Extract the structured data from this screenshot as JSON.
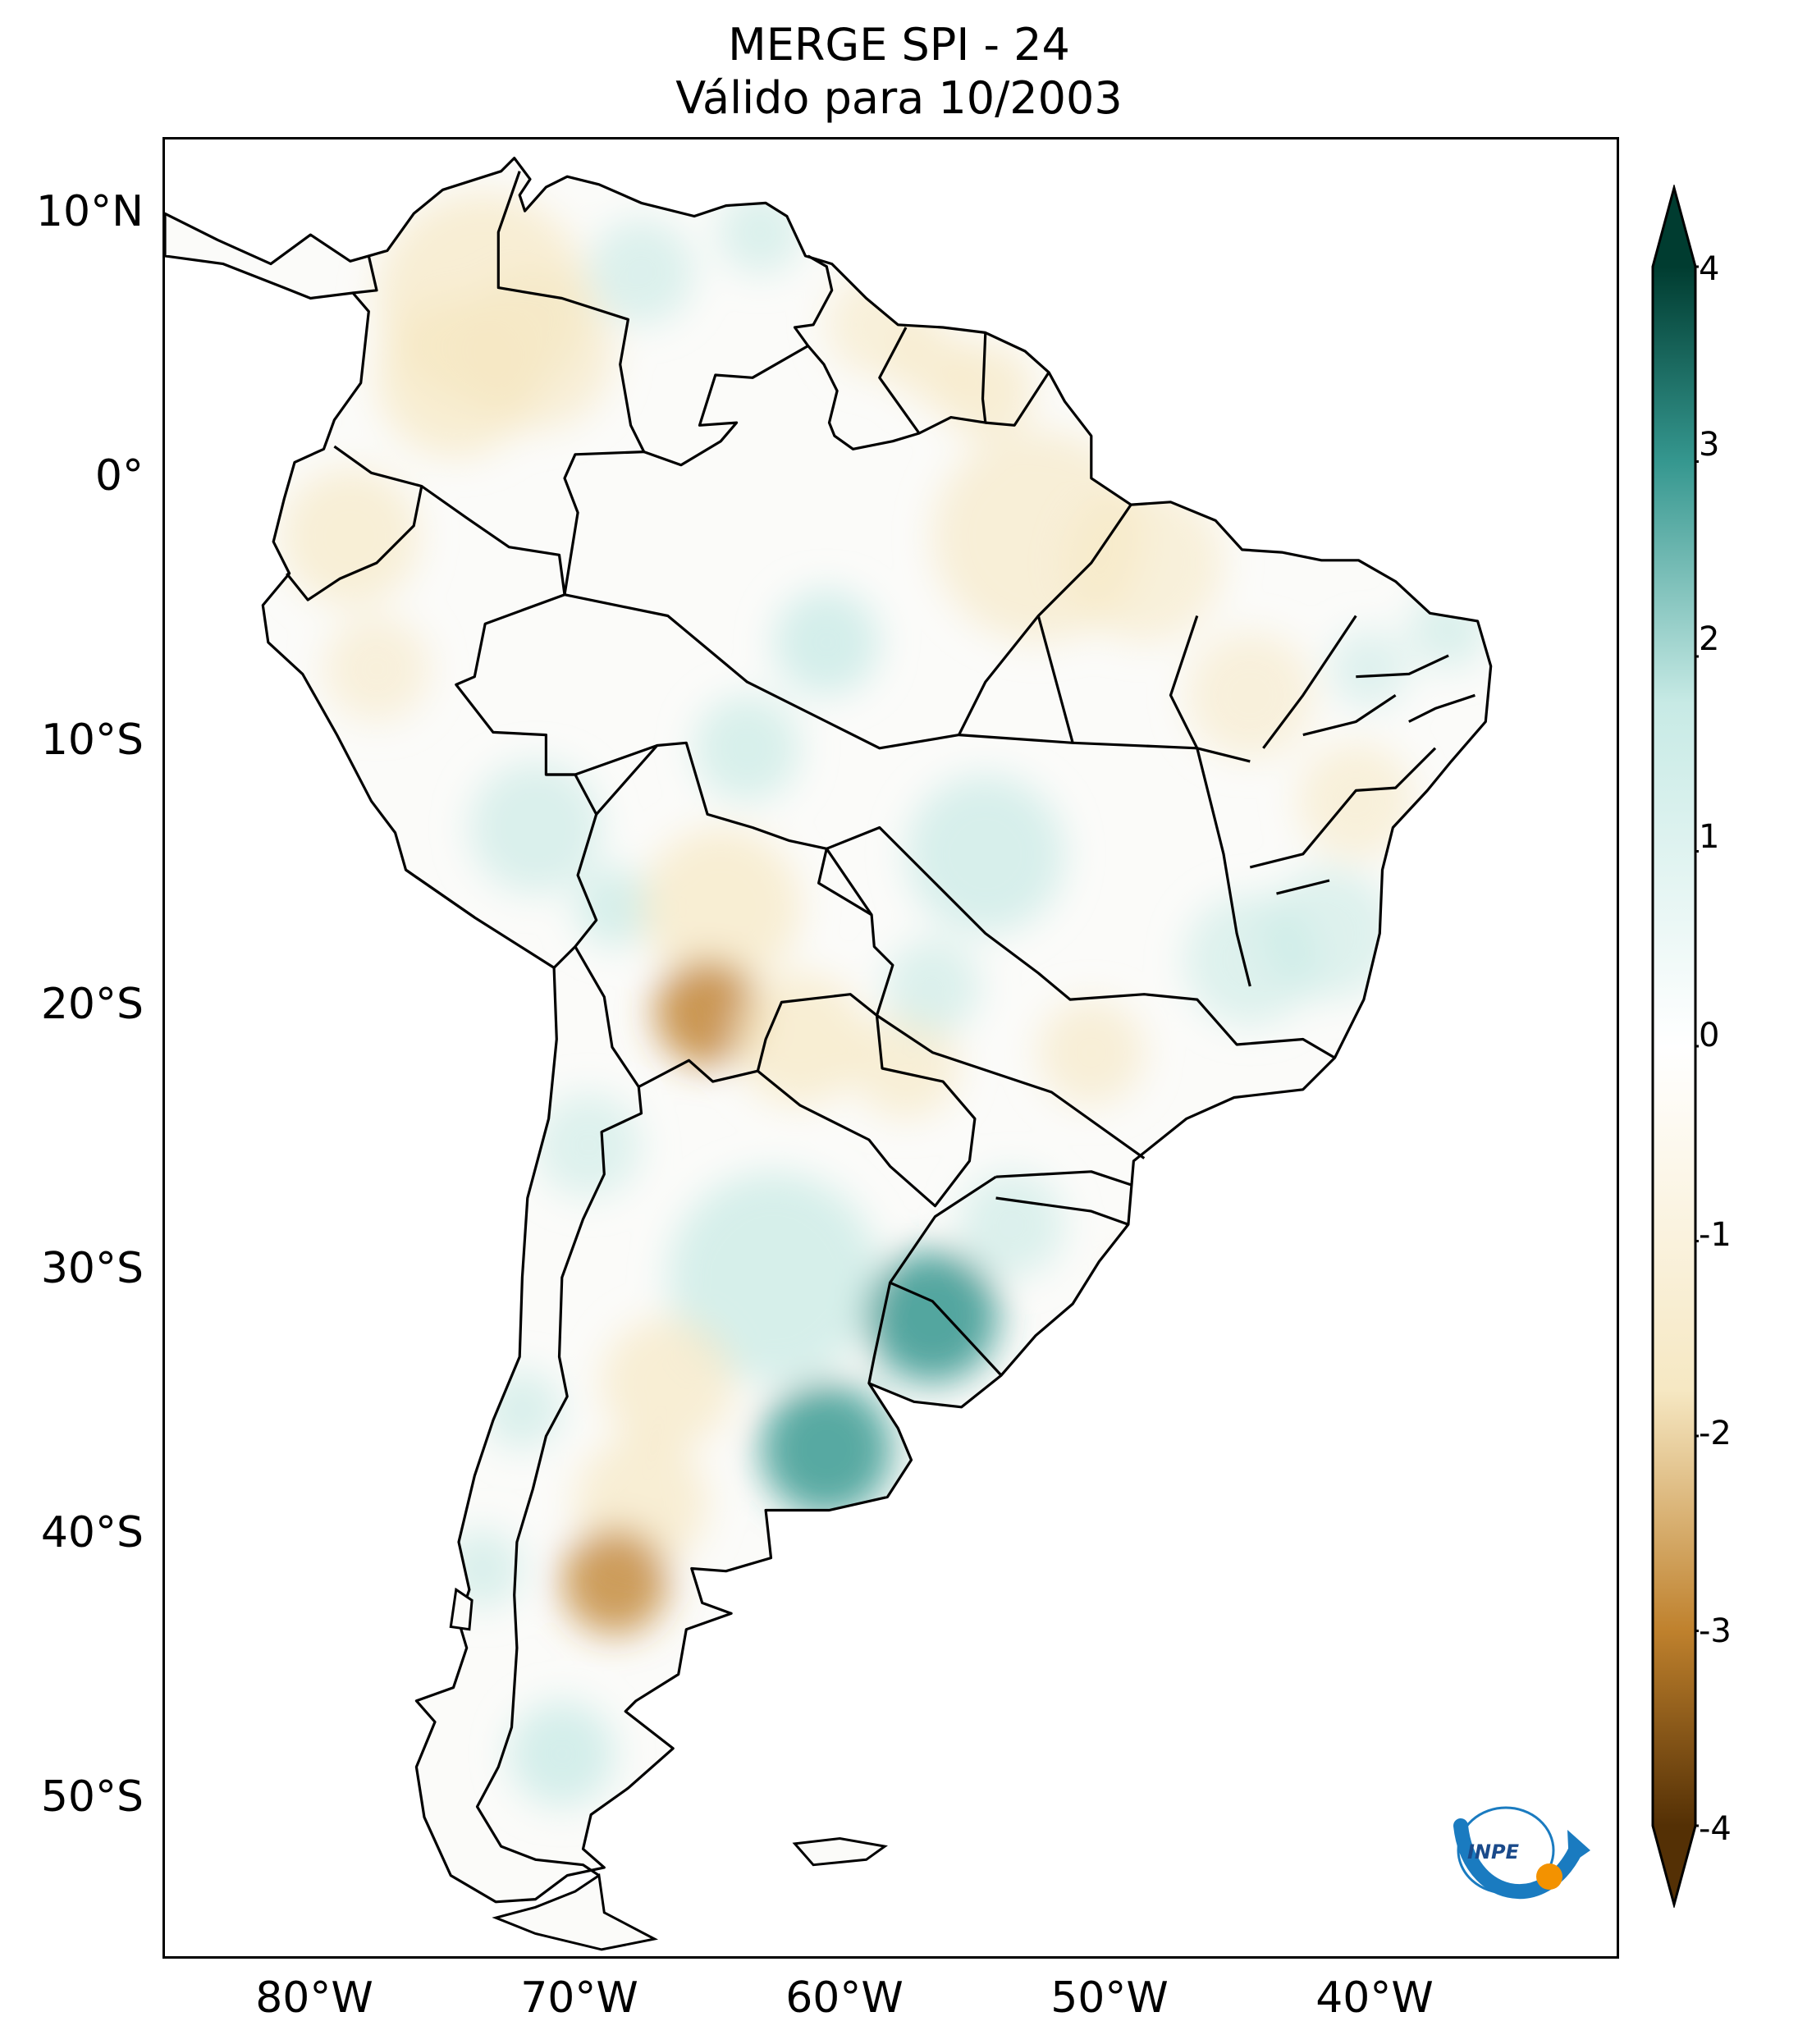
{
  "title": {
    "line1": "MERGE   SPI - 24",
    "line2": "Válido para 10/2003"
  },
  "map": {
    "region": "South America",
    "variable": "SPI - 24",
    "extent_lon": [
      -85,
      -30
    ],
    "extent_lat": [
      -56,
      13
    ],
    "lat_ticks": [
      {
        "value": 10,
        "label": "10°N"
      },
      {
        "value": 0,
        "label": "0°"
      },
      {
        "value": -10,
        "label": "10°S"
      },
      {
        "value": -20,
        "label": "20°S"
      },
      {
        "value": -30,
        "label": "30°S"
      },
      {
        "value": -40,
        "label": "40°S"
      },
      {
        "value": -50,
        "label": "50°S"
      }
    ],
    "lon_ticks": [
      {
        "value": -80,
        "label": "80°W"
      },
      {
        "value": -70,
        "label": "70°W"
      },
      {
        "value": -60,
        "label": "60°W"
      },
      {
        "value": -50,
        "label": "50°W"
      },
      {
        "value": -40,
        "label": "40°W"
      }
    ]
  },
  "colorbar": {
    "min": -4,
    "max": 4,
    "extend": "both",
    "ticks": [
      "4",
      "3",
      "2",
      "1",
      "0",
      "-1",
      "-2",
      "-3",
      "-4"
    ],
    "colors": {
      "very_dry": "#543005",
      "dry": "#bf812d",
      "slightly_dry": "#f6e8c3",
      "neutral": "#ffffff",
      "slightly_wet": "#c7eae5",
      "wet": "#35978f",
      "very_wet": "#003c30"
    }
  },
  "logo": {
    "text": "INPE",
    "colors": {
      "arrow": "#1a7bc0",
      "sun": "#f39200"
    }
  }
}
